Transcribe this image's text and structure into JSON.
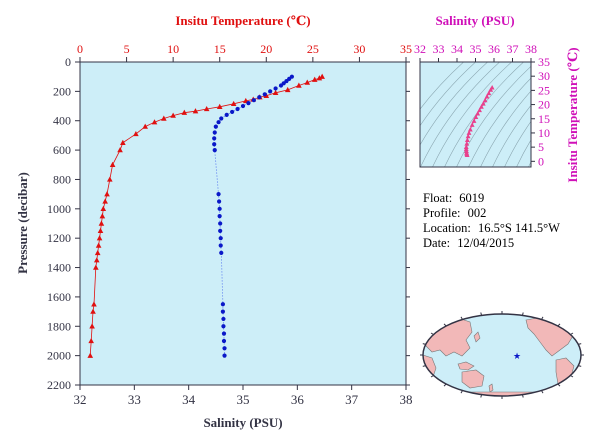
{
  "colors": {
    "plot_bg": "#cdeef8",
    "temperature": "#e01010",
    "salinity": "#0a18c8",
    "ts": "#e8408c",
    "magenta_axis": "#d010b8",
    "dark_axis": "#333344",
    "land": "#f2b8b8",
    "ocean": "#cdeef8"
  },
  "chart_data": [
    {
      "type": "scatter",
      "title": "",
      "top_axis_label": "Insitu Temperature (℃)",
      "top_axis_range": [
        0,
        35
      ],
      "top_ticks": [
        "0",
        "5",
        "10",
        "15",
        "20",
        "25",
        "30",
        "35"
      ],
      "bottom_axis_label": "Salinity (PSU)",
      "bottom_axis_range": [
        32,
        38
      ],
      "bottom_ticks": [
        "32",
        "33",
        "34",
        "35",
        "36",
        "37",
        "38"
      ],
      "ylabel": "Pressure (decibar)",
      "ylim": [
        0,
        2200
      ],
      "y_inverted": true,
      "yticks": [
        "0",
        "200",
        "400",
        "600",
        "800",
        "1000",
        "1200",
        "1400",
        "1600",
        "1800",
        "2000",
        "2200"
      ],
      "grid": false,
      "series": [
        {
          "axis": "top",
          "marker": "triangle",
          "points": [
            [
              26.0,
              100
            ],
            [
              25.7,
              110
            ],
            [
              25.2,
              120
            ],
            [
              24.4,
              140
            ],
            [
              23.5,
              160
            ],
            [
              22.3,
              190
            ],
            [
              21.0,
              210
            ],
            [
              20.0,
              230
            ],
            [
              19.3,
              240
            ],
            [
              18.6,
              255
            ],
            [
              17.8,
              265
            ],
            [
              16.5,
              285
            ],
            [
              15.0,
              305
            ],
            [
              13.6,
              320
            ],
            [
              12.4,
              335
            ],
            [
              11.2,
              345
            ],
            [
              10.0,
              365
            ],
            [
              9.0,
              385
            ],
            [
              8.0,
              410
            ],
            [
              7.0,
              440
            ],
            [
              6.0,
              490
            ],
            [
              4.6,
              550
            ],
            [
              4.3,
              600
            ],
            [
              3.5,
              700
            ],
            [
              3.2,
              800
            ],
            [
              2.9,
              900
            ],
            [
              2.7,
              950
            ],
            [
              2.5,
              1000
            ],
            [
              2.4,
              1050
            ],
            [
              2.3,
              1100
            ],
            [
              2.2,
              1150
            ],
            [
              2.1,
              1200
            ],
            [
              2.0,
              1250
            ],
            [
              1.9,
              1300
            ],
            [
              1.8,
              1350
            ],
            [
              1.7,
              1400
            ],
            [
              1.5,
              1650
            ],
            [
              1.4,
              1700
            ],
            [
              1.3,
              1800
            ],
            [
              1.2,
              1900
            ],
            [
              1.1,
              2000
            ]
          ]
        },
        {
          "axis": "bottom",
          "marker": "circle",
          "points": [
            [
              35.9,
              100
            ],
            [
              35.85,
              115
            ],
            [
              35.8,
              130
            ],
            [
              35.75,
              145
            ],
            [
              35.7,
              160
            ],
            [
              35.6,
              180
            ],
            [
              35.5,
              200
            ],
            [
              35.4,
              220
            ],
            [
              35.3,
              240
            ],
            [
              35.2,
              260
            ],
            [
              35.1,
              280
            ],
            [
              35.0,
              300
            ],
            [
              34.9,
              320
            ],
            [
              34.8,
              340
            ],
            [
              34.7,
              360
            ],
            [
              34.6,
              385
            ],
            [
              34.55,
              410
            ],
            [
              34.5,
              440
            ],
            [
              34.48,
              480
            ],
            [
              34.47,
              520
            ],
            [
              34.47,
              560
            ],
            [
              34.48,
              600
            ],
            [
              34.55,
              900
            ],
            [
              34.56,
              950
            ],
            [
              34.57,
              1000
            ],
            [
              34.57,
              1050
            ],
            [
              34.58,
              1100
            ],
            [
              34.58,
              1150
            ],
            [
              34.59,
              1200
            ],
            [
              34.59,
              1250
            ],
            [
              34.6,
              1300
            ],
            [
              34.63,
              1650
            ],
            [
              34.63,
              1700
            ],
            [
              34.64,
              1750
            ],
            [
              34.64,
              1800
            ],
            [
              34.65,
              1850
            ],
            [
              34.65,
              1900
            ],
            [
              34.66,
              1950
            ],
            [
              34.66,
              2000
            ]
          ]
        }
      ]
    },
    {
      "type": "scatter",
      "title": "",
      "top_axis_label": "Salinity (PSU)",
      "xlim": [
        32,
        38
      ],
      "xticks": [
        "32",
        "33",
        "34",
        "35",
        "36",
        "37",
        "38"
      ],
      "ylabel": "Insitu Temperature (℃)",
      "ylim": [
        -2,
        35
      ],
      "yticks": [
        "0",
        "5",
        "10",
        "15",
        "20",
        "25",
        "30",
        "35"
      ],
      "background_contours": "density",
      "points": [
        [
          35.9,
          26.0
        ],
        [
          35.82,
          25.2
        ],
        [
          35.72,
          24.0
        ],
        [
          35.62,
          22.8
        ],
        [
          35.52,
          21.5
        ],
        [
          35.42,
          20.3
        ],
        [
          35.32,
          19.2
        ],
        [
          35.22,
          18.0
        ],
        [
          35.12,
          16.8
        ],
        [
          35.02,
          15.6
        ],
        [
          34.92,
          14.2
        ],
        [
          34.82,
          12.8
        ],
        [
          34.72,
          11.2
        ],
        [
          34.65,
          10.0
        ],
        [
          34.6,
          8.8
        ],
        [
          34.56,
          7.5
        ],
        [
          34.53,
          6.2
        ],
        [
          34.5,
          5.0
        ],
        [
          34.5,
          4.3
        ],
        [
          34.51,
          3.6
        ],
        [
          34.52,
          3.0
        ],
        [
          34.53,
          2.5
        ],
        [
          34.55,
          2.2
        ]
      ]
    }
  ],
  "info": {
    "float_label": "Float:",
    "float_value": "6019",
    "profile_label": "Profile:",
    "profile_value": "002",
    "location_label": "Location:",
    "location_value": "16.5°S  141.5°W",
    "date_label": "Date:",
    "date_value": "12/04/2015"
  },
  "map": {
    "marker_symbol": "★",
    "float_lat": -16.5,
    "float_lon": -141.5
  }
}
